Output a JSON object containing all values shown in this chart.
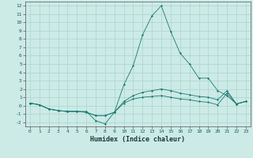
{
  "xlabel": "Humidex (Indice chaleur)",
  "x": [
    0,
    1,
    2,
    3,
    4,
    5,
    6,
    7,
    8,
    9,
    10,
    11,
    12,
    13,
    14,
    15,
    16,
    17,
    18,
    19,
    20,
    21,
    22,
    23
  ],
  "line1": [
    0.3,
    0.1,
    -0.4,
    -0.6,
    -0.7,
    -0.7,
    -0.7,
    -1.8,
    -2.2,
    -0.8,
    2.5,
    4.8,
    8.5,
    10.8,
    12.0,
    8.9,
    6.3,
    5.0,
    3.3,
    3.3,
    1.8,
    1.2,
    0.2,
    0.5
  ],
  "line2": [
    0.3,
    0.1,
    -0.4,
    -0.6,
    -0.7,
    -0.7,
    -0.8,
    -1.2,
    -1.2,
    -0.8,
    0.5,
    1.2,
    1.6,
    1.8,
    2.0,
    1.8,
    1.5,
    1.3,
    1.1,
    1.0,
    0.7,
    1.8,
    0.2,
    0.5
  ],
  "line3": [
    0.3,
    0.1,
    -0.4,
    -0.6,
    -0.7,
    -0.7,
    -0.8,
    -1.2,
    -1.2,
    -0.8,
    0.3,
    0.8,
    1.0,
    1.1,
    1.2,
    1.0,
    0.8,
    0.7,
    0.5,
    0.4,
    0.1,
    1.5,
    0.2,
    0.5
  ],
  "color": "#1a7a6e",
  "bg_color": "#cceae6",
  "grid_color": "#aad4cf",
  "ylim": [
    -2.5,
    12.5
  ],
  "xlim": [
    -0.5,
    23.5
  ],
  "yticks": [
    -2,
    -1,
    0,
    1,
    2,
    3,
    4,
    5,
    6,
    7,
    8,
    9,
    10,
    11,
    12
  ],
  "xticks": [
    0,
    1,
    2,
    3,
    4,
    5,
    6,
    7,
    8,
    9,
    10,
    11,
    12,
    13,
    14,
    15,
    16,
    17,
    18,
    19,
    20,
    21,
    22,
    23
  ]
}
